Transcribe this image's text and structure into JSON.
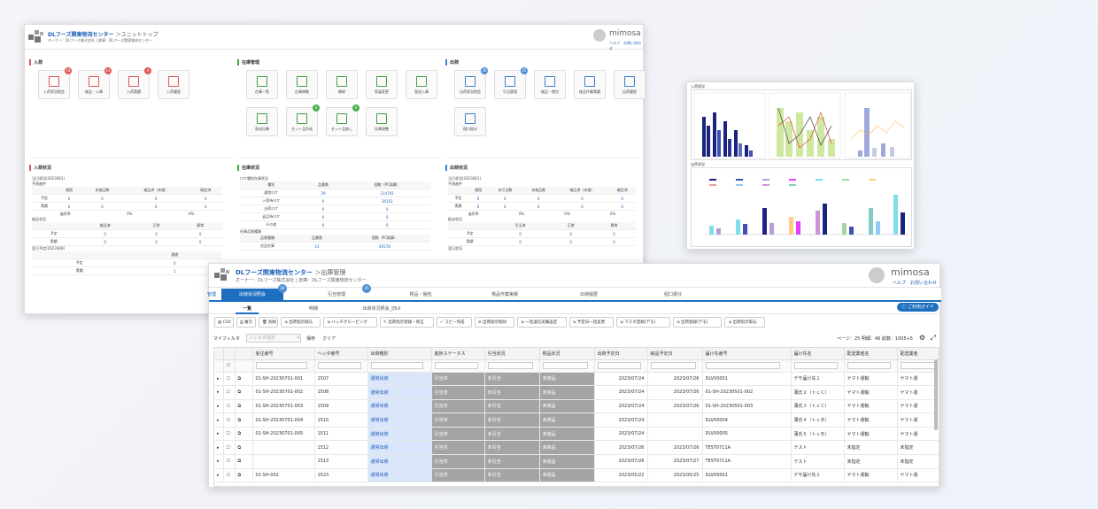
{
  "dashboard": {
    "title": "DLフーズ関東物流センター",
    "crumb": "＞ユニットトップ",
    "subtitle": "オーナー：DLフーズ株式会社 | 倉庫：DLフーズ関東物流センター",
    "brand": "mimosa",
    "header_links": "ヘルプ　お問い合わせ",
    "sections": [
      {
        "title": "入荷",
        "color": "#e05656",
        "tiles": [
          {
            "label": "入荷状況照会",
            "badge": "18"
          },
          {
            "label": "検品・入庫",
            "badge": "14"
          },
          {
            "label": "入荷実績",
            "badge": "4"
          },
          {
            "label": "入荷履歴",
            "badge": ""
          }
        ]
      },
      {
        "title": "在庫管理",
        "color": "#43a047",
        "tiles": [
          {
            "label": "在庫一覧",
            "badge": ""
          },
          {
            "label": "在庫移動",
            "badge": ""
          },
          {
            "label": "棚卸",
            "badge": ""
          },
          {
            "label": "荷姿変更",
            "badge": ""
          },
          {
            "label": "直送入庫",
            "badge": ""
          },
          {
            "label": "直送出庫",
            "badge": ""
          },
          {
            "label": "セット品作成",
            "badge": "0"
          },
          {
            "label": "セット品崩し",
            "badge": "0"
          },
          {
            "label": "在庫調整",
            "badge": ""
          }
        ]
      },
      {
        "title": "出荷",
        "color": "#3f7fd0",
        "tiles": [
          {
            "label": "出荷状況照会",
            "badge": "26"
          },
          {
            "label": "引当管理",
            "badge": "25"
          },
          {
            "label": "検品・梱包",
            "badge": ""
          },
          {
            "label": "検品作業実績",
            "badge": ""
          },
          {
            "label": "出荷履歴",
            "badge": ""
          },
          {
            "label": "個口振分",
            "badge": ""
          }
        ]
      }
    ],
    "arrival_status": {
      "title": "入荷状況",
      "date": "当日状況(2023/8/1)",
      "sub1": "予測進捗",
      "headers": [
        "",
        "通過",
        "未検品数",
        "検品済（未検）",
        "確定済"
      ],
      "rows": [
        [
          "予定",
          "0",
          "0",
          "0",
          "0"
        ],
        [
          "実績",
          "0",
          "0",
          "0",
          "0"
        ]
      ],
      "ratio_label": "進捗率",
      "ratio": [
        "0%",
        "0%"
      ],
      "sub2": "検品状況",
      "h2": [
        "",
        "検品済",
        "正常",
        "異常"
      ],
      "rows2": [
        [
          "予定",
          "0",
          "0",
          "0"
        ],
        [
          "実績",
          "0",
          "0",
          "0"
        ]
      ],
      "sub3": "翌日予定(2023/8/8)",
      "h3": [
        "",
        "通過"
      ],
      "rows3": [
        [
          "予定",
          "0"
        ],
        [
          "実績",
          "1"
        ]
      ]
    },
    "stock_status": {
      "title": "在庫状況",
      "sub1": "ロケ種別在庫状況",
      "headers": [
        "種別",
        "品番数",
        "個数（PC換算）"
      ],
      "rows": [
        [
          "通常ロケ",
          "29",
          "114741"
        ],
        [
          "入荷待ロケ",
          "0",
          "34103"
        ],
        [
          "出荷ロケ",
          "0",
          "0"
        ],
        [
          "返品待ロケ",
          "0",
          "0"
        ],
        [
          "その他",
          "0",
          "0"
        ]
      ],
      "sub2": "在庫品質種類",
      "h2": [
        "品質種類",
        "品番数",
        "個数（PC換算）"
      ],
      "rows2": [
        [
          "良品在庫",
          "14",
          "40178"
        ]
      ]
    },
    "shipping_status": {
      "title": "出荷状況",
      "date": "当日状況(2023/8/1)",
      "sub1": "予測進捗",
      "headers": [
        "",
        "通過",
        "未引当数",
        "未検品数",
        "検品済（未検）",
        "確定済"
      ],
      "rows": [
        [
          "予定",
          "0",
          "0",
          "0",
          "0",
          "0"
        ],
        [
          "実績",
          "0",
          "0",
          "0",
          "0",
          "0"
        ]
      ],
      "ratio_label": "進捗率",
      "ratio": [
        "0%",
        "0%",
        "0%"
      ],
      "sub2": "配送状況",
      "h2": [
        "",
        "引当済",
        "正常",
        "異常"
      ],
      "rows2": [
        [
          "予定",
          "0",
          "0",
          "0"
        ],
        [
          "実績",
          "0",
          "0",
          "0"
        ]
      ],
      "sub3": "翌日状況"
    }
  },
  "charts": {
    "top_label": "入荷状況",
    "bottom_label": "出荷状況"
  },
  "shipment": {
    "title": "DLフーズ関東物流センター",
    "crumb": "＞出庫管理",
    "subtitle": "オーナー：DLフーズ株式会社 | 倉庫：DLフーズ関東物流センター",
    "brand": "mimosa",
    "header_links": "ヘルプ　お問い合わせ",
    "left_stub": "管理",
    "tabs": [
      {
        "label": "出荷状況照会",
        "badge": "26"
      },
      {
        "label": "引当管理",
        "badge": "25"
      },
      {
        "label": "検品・梱包",
        "badge": ""
      },
      {
        "label": "検品作業実績",
        "badge": ""
      },
      {
        "label": "出荷履歴",
        "badge": ""
      },
      {
        "label": "個口振分",
        "badge": ""
      }
    ],
    "subtabs": [
      "一覧",
      "明細",
      "出荷状況照会_旧UI"
    ],
    "guide": "ご利用ガイド",
    "toolbar": [
      "CSV",
      "複写",
      "削除",
      "出荷指示取込",
      "バッチグルーピング",
      "出荷指示登録・修正",
      "コピー作成",
      "出荷指示削除",
      "一括送信実績設定",
      "予定日一括変更",
      "マスタ登録(デモ)",
      "出荷登録(デモ)",
      "出荷指示取込"
    ],
    "myfilter_label": "マイフィルタ",
    "myfilter_placeholder": "フィルタ指定",
    "save": "保存",
    "clear": "クリア",
    "pager": "ページ：25 明細：46 総数：1005+5",
    "columns": [
      "",
      "",
      "",
      "受注番号",
      "ヘッダ番号",
      "出荷種別",
      "進捗ステータス",
      "引当状況",
      "検品状況",
      "出荷予定日",
      "納品予定日",
      "届け先番号",
      "届け先名",
      "配送業者名",
      "配送業者"
    ],
    "rows": [
      [
        "01-SH-20230701-001",
        "1507",
        "通常出荷",
        "引当済",
        "未引当",
        "未検品",
        "2023/07/24",
        "2023/07/26",
        "DLV00001",
        "デモ届け先１",
        "ヤマト運輸",
        "ヤマト運"
      ],
      [
        "01-SH-20230701-002",
        "1508",
        "通常出荷",
        "引当済",
        "未引当",
        "未検品",
        "2023/07/24",
        "2023/07/26",
        "01-SH-20230501-002",
        "蒲氏２（ｔｃＣ）",
        "ヤマト運輸",
        "ヤマト運"
      ],
      [
        "01-SH-20230701-003",
        "1509",
        "通常出荷",
        "引当済",
        "未引当",
        "未検品",
        "2023/07/24",
        "2023/07/26",
        "01-SH-20230501-003",
        "蒲氏３（ｔｃＣ）",
        "ヤマト運輸",
        "ヤマト運"
      ],
      [
        "01-SH-20230701-004",
        "1510",
        "通常出荷",
        "引当済",
        "未引当",
        "未検品",
        "2023/07/24",
        "",
        "DLV00004",
        "蒲氏４（ｔｃＢ）",
        "ヤマト運輸",
        "ヤマト運"
      ],
      [
        "01-SH-20230701-005",
        "1511",
        "通常出荷",
        "引当済",
        "未引当",
        "未検品",
        "2023/07/24",
        "",
        "DLV00005",
        "蒲氏５（ｔｃＢ）",
        "ヤマト運輸",
        "ヤマト運"
      ],
      [
        "",
        "1512",
        "通常出荷",
        "引当済",
        "未引当",
        "未検品",
        "2023/07/26",
        "2023/07/26",
        "TEST0711A",
        "テスト",
        "未指定",
        "未指定"
      ],
      [
        "",
        "1513",
        "通常出荷",
        "引当済",
        "未引当",
        "未検品",
        "2023/07/26",
        "2023/07/27",
        "TEST0711A",
        "テスト",
        "未指定",
        "未指定"
      ],
      [
        "01-SH-001",
        "1523",
        "通常出荷",
        "引当済",
        "未引当",
        "未検品",
        "2023/05/22",
        "2023/05/25",
        "DLV00001",
        "デモ届け先１",
        "ヤマト運輸",
        "ヤマト運"
      ]
    ]
  }
}
